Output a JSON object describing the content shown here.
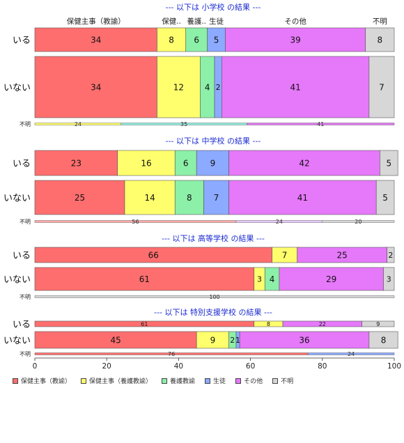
{
  "chart_data": {
    "type": "bar",
    "orientation": "horizontal",
    "stacked": true,
    "xlim": [
      0,
      100
    ],
    "x_ticks": [
      0,
      20,
      40,
      60,
      80,
      100
    ],
    "categories": [
      "保健主事（教諭）",
      "保健主事（養護教諭）",
      "養護教諭",
      "生徒",
      "その他",
      "不明"
    ],
    "category_colors": [
      "#FF6E6E",
      "#FFFF6E",
      "#8CF0A8",
      "#8CAAFF",
      "#E678FA",
      "#D7D7D7"
    ],
    "column_headers": [
      "保健主事（教諭）",
      "保健..",
      "養護..",
      "生徒",
      "その他",
      "不明"
    ],
    "panels": [
      {
        "title": "--- 以下は 小学校 の結果 ---",
        "rows": [
          {
            "label": "いる",
            "values": [
              34,
              8,
              6,
              5,
              39,
              8
            ]
          },
          {
            "label": "いない",
            "values": [
              34,
              12,
              4,
              2,
              41,
              7
            ]
          }
        ],
        "unknown": {
          "label": "不明",
          "values": [
            24,
            35,
            41
          ],
          "colors": [
            "#FFFF6E",
            "#8CF0E0",
            "#E678FA"
          ]
        }
      },
      {
        "title": "--- 以下は 中学校 の結果 ---",
        "rows": [
          {
            "label": "いる",
            "values": [
              23,
              16,
              6,
              9,
              42,
              5
            ]
          },
          {
            "label": "いない",
            "values": [
              25,
              14,
              8,
              7,
              41,
              5
            ]
          }
        ],
        "unknown": {
          "label": "不明",
          "values": [
            56,
            24,
            20
          ],
          "colors": [
            "#FFAAAA",
            "#E6C8FA",
            "#D7D7D7"
          ]
        }
      },
      {
        "title": "--- 以下は 高等学校 の結果 ---",
        "rows": [
          {
            "label": "いる",
            "values": [
              66,
              7,
              0,
              0,
              25,
              2
            ]
          },
          {
            "label": "いない",
            "values": [
              61,
              3,
              4,
              0,
              29,
              3
            ]
          }
        ],
        "unknown": {
          "label": "不明",
          "values": [
            100
          ],
          "colors": [
            "#D7D7D7"
          ]
        }
      },
      {
        "title": "--- 以下は 特別支援学校 の結果 ---",
        "rows": [
          {
            "label": "いる",
            "values": [
              61,
              8,
              0,
              0,
              22,
              9
            ]
          },
          {
            "label": "いない",
            "values": [
              45,
              9,
              2,
              1,
              36,
              8
            ]
          }
        ],
        "unknown": {
          "label": "不明",
          "values": [
            76,
            24
          ],
          "colors": [
            "#FF6E6E",
            "#8CAAFF"
          ]
        }
      }
    ]
  }
}
